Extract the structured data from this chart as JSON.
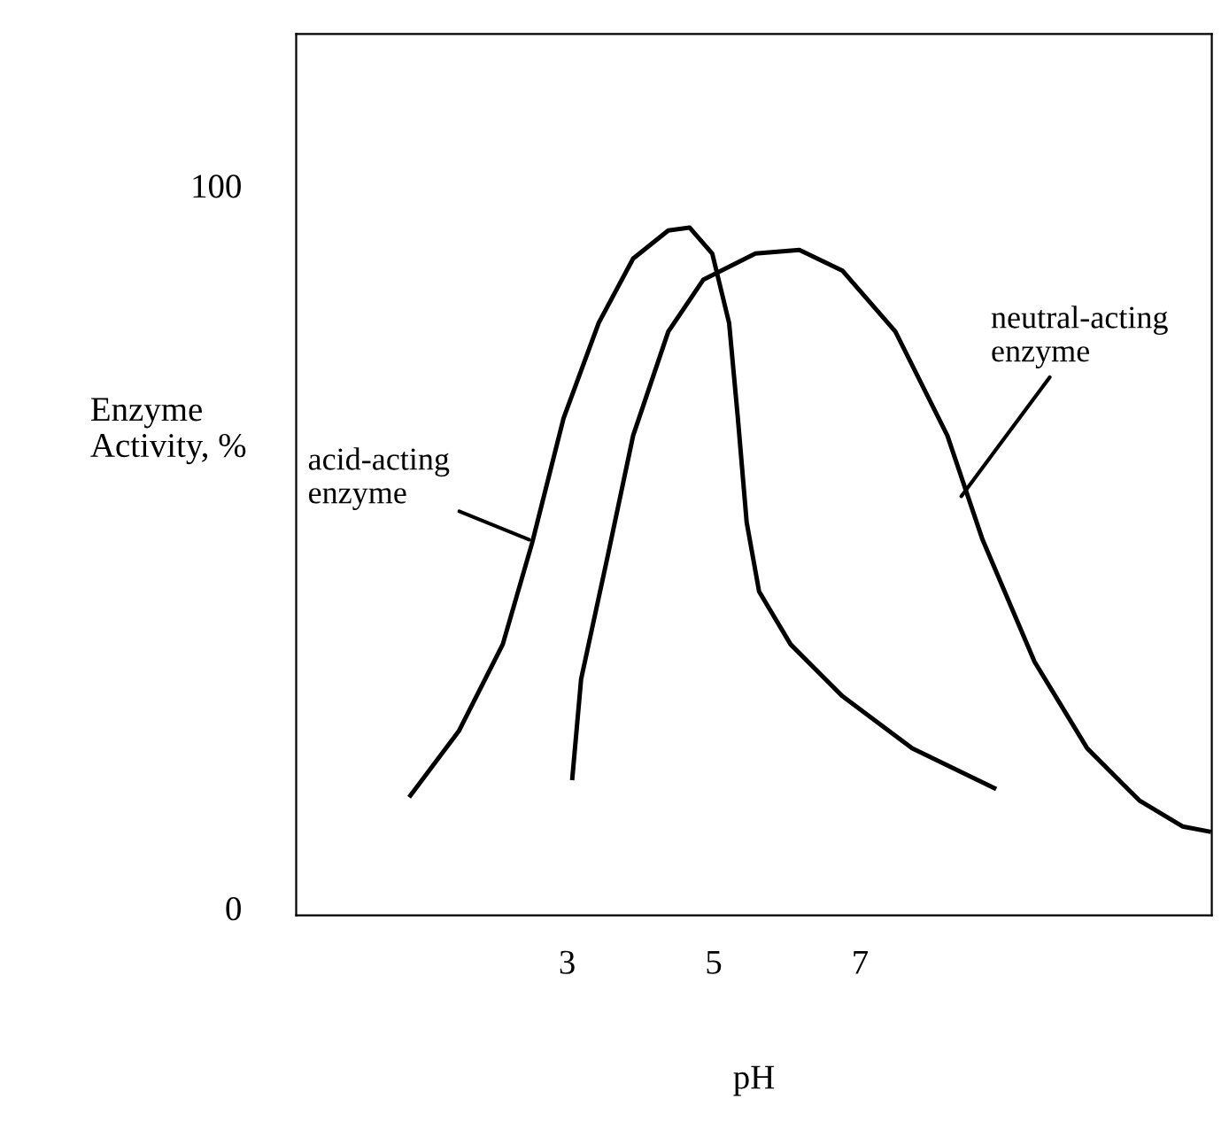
{
  "chart_data": {
    "type": "line",
    "xlabel": "pH",
    "ylabel": "Enzyme\nActivity, %",
    "xlim": [
      -0.7,
      11.8
    ],
    "ylim": [
      -1,
      121
    ],
    "xticks": [
      3,
      5,
      7
    ],
    "yticks": [
      0,
      100
    ],
    "grid": false,
    "legend": false,
    "marker": "none",
    "line_style": "solid",
    "series": [
      {
        "color": "#000000",
        "x": [
          0.86,
          1.52,
          2.12,
          2.52,
          2.95,
          3.43,
          3.9,
          4.38,
          4.67,
          4.98,
          5.21,
          5.33,
          5.45,
          5.62,
          6.05,
          6.76,
          7.71,
          8.83
        ],
        "values": [
          15.6,
          24.5,
          36.5,
          50.5,
          67.8,
          81.0,
          89.9,
          93.8,
          94.2,
          90.6,
          81.0,
          67.8,
          53.4,
          43.8,
          36.5,
          29.3,
          22.1,
          16.6
        ]
      },
      {
        "color": "#000000",
        "x": [
          3.07,
          3.19,
          3.55,
          3.9,
          4.38,
          4.86,
          5.57,
          6.17,
          6.76,
          7.48,
          8.19,
          8.67,
          9.38,
          10.1,
          10.81,
          11.4,
          11.76
        ],
        "values": [
          18.0,
          31.7,
          48.6,
          65.4,
          79.8,
          87.0,
          90.6,
          91.1,
          88.2,
          79.8,
          65.4,
          51.0,
          34.1,
          22.1,
          14.9,
          11.3,
          10.6
        ]
      }
    ],
    "annotations": [
      {
        "text": "acid-acting\nenzyme",
        "x": 2.48,
        "y": 51
      },
      {
        "text": "neutral-acting\nenzyme",
        "x": 8.38,
        "y": 57
      }
    ]
  }
}
